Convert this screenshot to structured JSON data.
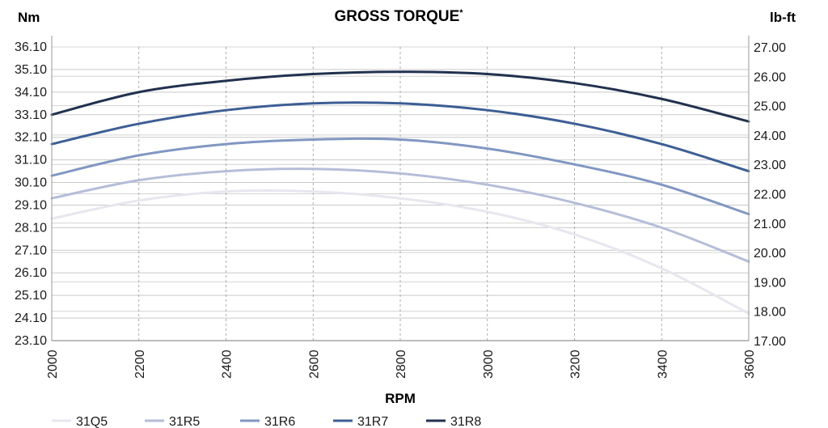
{
  "chart_data": {
    "type": "line",
    "title": "GROSS TORQUE",
    "title_mark": "*",
    "xlabel": "RPM",
    "ylabel_left": "Nm",
    "ylabel_right": "lb-ft",
    "x": [
      2000,
      2200,
      2400,
      2600,
      2800,
      3000,
      3200,
      3400,
      3600
    ],
    "xlim": [
      2000,
      3600
    ],
    "ylim_left": [
      23.1,
      36.1
    ],
    "ylim_right": [
      17.0,
      27.0
    ],
    "yticks_left": [
      "36.10",
      "35.10",
      "34.10",
      "33.10",
      "32.10",
      "31.10",
      "30.10",
      "29.10",
      "28.10",
      "27.10",
      "26.10",
      "25.10",
      "24.10",
      "23.10"
    ],
    "yticks_right": [
      "27.00",
      "26.00",
      "25.00",
      "24.00",
      "23.00",
      "22.00",
      "21.00",
      "20.00",
      "19.00",
      "18.00",
      "17.00"
    ],
    "grid": true,
    "legend_position": "bottom-left",
    "series": [
      {
        "name": "31Q5",
        "color": "#e6e7ef",
        "values": [
          28.5,
          29.3,
          29.7,
          29.7,
          29.4,
          28.8,
          27.8,
          26.3,
          24.3
        ]
      },
      {
        "name": "31R5",
        "color": "#b5bed8",
        "values": [
          29.4,
          30.2,
          30.6,
          30.7,
          30.5,
          30.0,
          29.2,
          28.1,
          26.6
        ]
      },
      {
        "name": "31R6",
        "color": "#8197c2",
        "values": [
          30.4,
          31.3,
          31.8,
          32.0,
          32.0,
          31.6,
          30.9,
          30.0,
          28.7
        ]
      },
      {
        "name": "31R7",
        "color": "#3d5e94",
        "values": [
          31.8,
          32.7,
          33.3,
          33.6,
          33.6,
          33.3,
          32.7,
          31.8,
          30.6
        ]
      },
      {
        "name": "31R8",
        "color": "#22314f",
        "values": [
          33.1,
          34.1,
          34.6,
          34.9,
          35.0,
          34.9,
          34.5,
          33.8,
          32.8
        ]
      }
    ]
  }
}
